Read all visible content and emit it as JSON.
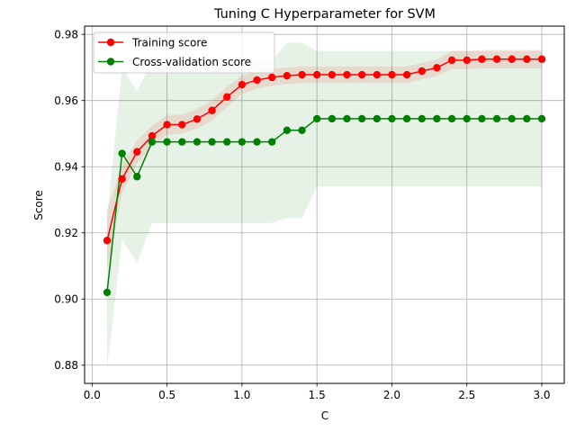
{
  "chart_data": {
    "type": "line",
    "title": "Tuning C Hyperparameter for SVM",
    "xlabel": "C",
    "ylabel": "Score",
    "xlim": [
      -0.05,
      3.15
    ],
    "ylim": [
      0.8745,
      0.9825
    ],
    "x_ticks": [
      0.0,
      0.5,
      1.0,
      1.5,
      2.0,
      2.5,
      3.0
    ],
    "x_tick_labels": [
      "0.0",
      "0.5",
      "1.0",
      "1.5",
      "2.0",
      "2.5",
      "3.0"
    ],
    "y_ticks": [
      0.88,
      0.9,
      0.92,
      0.94,
      0.96,
      0.98
    ],
    "y_tick_labels": [
      "0.88",
      "0.90",
      "0.92",
      "0.94",
      "0.96",
      "0.98"
    ],
    "grid": true,
    "legend_position": "upper-left",
    "x": [
      0.1,
      0.2,
      0.3,
      0.4,
      0.5,
      0.6,
      0.7,
      0.8,
      0.9,
      1.0,
      1.1,
      1.2,
      1.3,
      1.4,
      1.5,
      1.6,
      1.7,
      1.8,
      1.9,
      2.0,
      2.1,
      2.2,
      2.3,
      2.4,
      2.5,
      2.6,
      2.7,
      2.8,
      2.9,
      3.0
    ],
    "series": [
      {
        "name": "Training score",
        "color": "#ff0000",
        "values": [
          0.9177,
          0.9363,
          0.9445,
          0.9493,
          0.9527,
          0.9527,
          0.9544,
          0.957,
          0.9611,
          0.9648,
          0.9662,
          0.967,
          0.9675,
          0.9678,
          0.9678,
          0.9678,
          0.9678,
          0.9678,
          0.9678,
          0.9678,
          0.9678,
          0.9689,
          0.9699,
          0.9722,
          0.9722,
          0.9725,
          0.9725,
          0.9725,
          0.9725,
          0.9725
        ],
        "band_lower": [
          0.9085,
          0.932,
          0.941,
          0.9462,
          0.9497,
          0.95,
          0.9515,
          0.954,
          0.958,
          0.962,
          0.9636,
          0.9645,
          0.965,
          0.9653,
          0.9653,
          0.9653,
          0.9653,
          0.9653,
          0.9653,
          0.9653,
          0.9653,
          0.9664,
          0.9674,
          0.9695,
          0.9695,
          0.9697,
          0.9697,
          0.9697,
          0.9697,
          0.9697
        ],
        "band_upper": [
          0.927,
          0.9405,
          0.948,
          0.9524,
          0.9557,
          0.9557,
          0.9575,
          0.96,
          0.9642,
          0.9676,
          0.9688,
          0.9695,
          0.97,
          0.9703,
          0.9703,
          0.9703,
          0.9703,
          0.9703,
          0.9703,
          0.9703,
          0.9703,
          0.9714,
          0.9724,
          0.975,
          0.975,
          0.9753,
          0.9753,
          0.9753,
          0.9753,
          0.9753
        ]
      },
      {
        "name": "Cross-validation score",
        "color": "#008000",
        "values": [
          0.902,
          0.944,
          0.937,
          0.9475,
          0.9475,
          0.9475,
          0.9475,
          0.9475,
          0.9475,
          0.9475,
          0.9475,
          0.9475,
          0.951,
          0.951,
          0.9545,
          0.9545,
          0.9545,
          0.9545,
          0.9545,
          0.9545,
          0.9545,
          0.9545,
          0.9545,
          0.9545,
          0.9545,
          0.9545,
          0.9545,
          0.9545,
          0.9545,
          0.9545
        ],
        "band_lower": [
          0.879,
          0.918,
          0.911,
          0.923,
          0.923,
          0.923,
          0.923,
          0.923,
          0.923,
          0.923,
          0.923,
          0.923,
          0.9245,
          0.9245,
          0.934,
          0.934,
          0.934,
          0.934,
          0.934,
          0.934,
          0.934,
          0.934,
          0.934,
          0.934,
          0.934,
          0.934,
          0.934,
          0.934,
          0.934,
          0.934
        ],
        "band_upper": [
          0.925,
          0.97,
          0.9628,
          0.972,
          0.972,
          0.972,
          0.972,
          0.972,
          0.972,
          0.972,
          0.972,
          0.972,
          0.9775,
          0.9775,
          0.975,
          0.975,
          0.975,
          0.975,
          0.975,
          0.975,
          0.975,
          0.975,
          0.975,
          0.975,
          0.975,
          0.975,
          0.975,
          0.975,
          0.975,
          0.975
        ]
      }
    ]
  }
}
